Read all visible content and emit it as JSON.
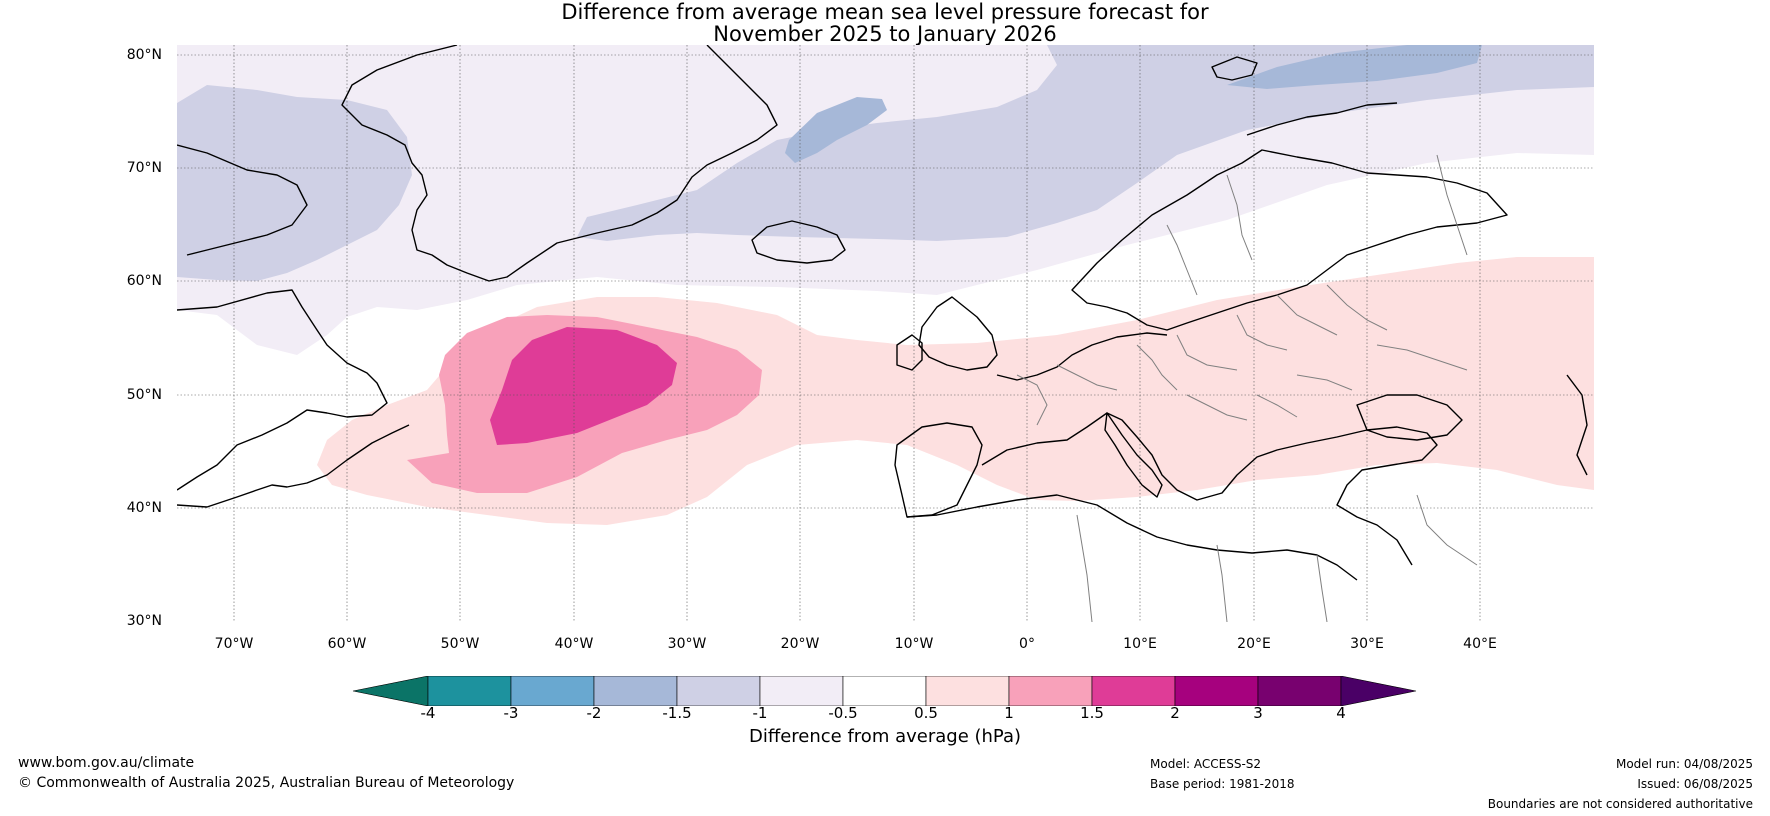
{
  "title": {
    "line1": "Difference from average mean sea level pressure forecast for",
    "line2": "November 2025 to January 2026"
  },
  "map": {
    "extent": {
      "lon_min": -75,
      "lon_max": 50,
      "lat_min": 30,
      "lat_max": 81
    },
    "lat_labels": [
      "80°N",
      "70°N",
      "60°N",
      "50°N",
      "40°N",
      "30°N"
    ],
    "lat_values": [
      80,
      70,
      60,
      50,
      40,
      30
    ],
    "lon_labels": [
      "70°W",
      "60°W",
      "50°W",
      "40°W",
      "30°W",
      "20°W",
      "10°W",
      "0°",
      "10°E",
      "20°E",
      "30°E",
      "40°E"
    ],
    "lon_values": [
      -70,
      -60,
      -50,
      -40,
      -30,
      -20,
      -10,
      0,
      10,
      20,
      30,
      40
    ],
    "ocean_color": "#ffffff",
    "coastline_color": "#000000",
    "border_color": "#808080"
  },
  "colorbar": {
    "title": "Difference from average (hPa)",
    "tick_labels": [
      "-4",
      "-3",
      "-2",
      "-1.5",
      "-1",
      "-0.5",
      "0.5",
      "1",
      "1.5",
      "2",
      "3",
      "4"
    ],
    "colors": [
      "#0b7467",
      "#1d929e",
      "#69a8d0",
      "#a6b8d8",
      "#cfd0e5",
      "#f2edf6",
      "#ffffff",
      "#fde0e0",
      "#f8a1ba",
      "#df3c97",
      "#a6017e",
      "#78016f",
      "#4a0066"
    ]
  },
  "footer": {
    "website": "www.bom.gov.au/climate",
    "copyright": "© Commonwealth of Australia 2025, Australian Bureau of Meteorology",
    "model": "Model: ACCESS-S2",
    "base_period": "Base period: 1981-2018",
    "model_run": "Model run: 04/08/2025",
    "issued": "Issued: 06/08/2025",
    "disclaimer": "Boundaries are not considered authoritative"
  }
}
